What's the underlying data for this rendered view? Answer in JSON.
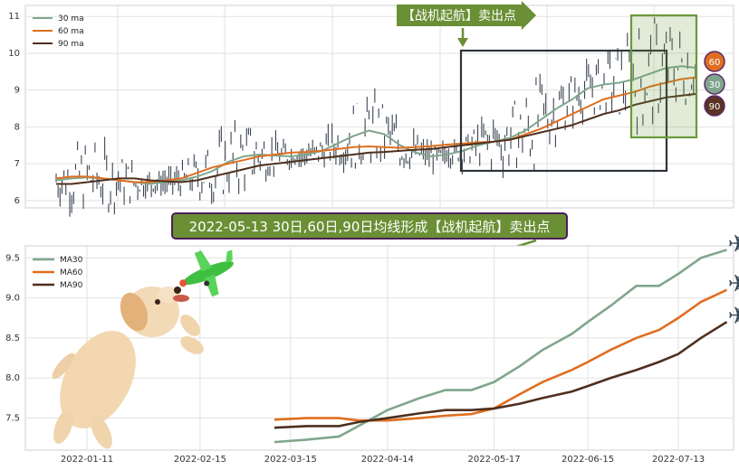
{
  "colors": {
    "ma30": "#7fa68c",
    "ma60": "#e06e1f",
    "ma90": "#4e2f1e",
    "candle": "#3b4452",
    "box": "#2e343c",
    "box_green": "#6a9a3c",
    "arrow_green": "#5e8a32",
    "banner_border": "#4b1f5a",
    "badge_60": "#e06e1f",
    "badge_30": "#7fa68c",
    "badge_90": "#5a3322"
  },
  "top": {
    "annotation": "【战机起航】卖出点",
    "badges": [
      "60",
      "30",
      "90"
    ]
  },
  "banner": "2022-05-13 30日,60日,90日均线形成【战机起航】卖出点",
  "icons": {
    "dog": "dog-illustration",
    "plane": "airplane-icon"
  },
  "chart_data": [
    {
      "type": "line",
      "y_ticks": [
        6,
        7,
        8,
        9,
        10,
        11
      ],
      "ylim": [
        5.8,
        11.3
      ],
      "grid": true,
      "legend_position": "top-left",
      "series": [
        {
          "name": "30 ma",
          "start_day": 60,
          "values": [
            6.55,
            6.6,
            6.63,
            6.6,
            6.55,
            6.5,
            6.45,
            6.5,
            6.55,
            6.65,
            6.8,
            7.05,
            7.2,
            7.25,
            7.22,
            7.2,
            7.25,
            7.35,
            7.55,
            7.75,
            7.9,
            7.8,
            7.5,
            7.3,
            7.2,
            7.25,
            7.35,
            7.5,
            7.6,
            7.7,
            7.9,
            8.2,
            8.5,
            8.75,
            9.05,
            9.15,
            9.2,
            9.3,
            9.45,
            9.6,
            9.65,
            9.6
          ]
        },
        {
          "name": "60 ma",
          "start_day": 60,
          "values": [
            6.6,
            6.65,
            6.65,
            6.6,
            6.55,
            6.5,
            6.5,
            6.55,
            6.6,
            6.75,
            6.9,
            7.0,
            7.1,
            7.2,
            7.25,
            7.3,
            7.32,
            7.35,
            7.4,
            7.45,
            7.47,
            7.45,
            7.43,
            7.45,
            7.48,
            7.52,
            7.55,
            7.58,
            7.6,
            7.65,
            7.8,
            7.95,
            8.15,
            8.35,
            8.55,
            8.75,
            8.85,
            8.95,
            9.1,
            9.2,
            9.3,
            9.35
          ]
        },
        {
          "name": "90 ma",
          "start_day": 60,
          "values": [
            6.45,
            6.45,
            6.5,
            6.55,
            6.6,
            6.6,
            6.55,
            6.52,
            6.5,
            6.55,
            6.65,
            6.75,
            6.85,
            6.95,
            7.0,
            7.05,
            7.1,
            7.15,
            7.2,
            7.25,
            7.3,
            7.32,
            7.35,
            7.38,
            7.4,
            7.45,
            7.5,
            7.55,
            7.6,
            7.65,
            7.75,
            7.85,
            7.95,
            8.05,
            8.2,
            8.35,
            8.45,
            8.6,
            8.7,
            8.8,
            8.85,
            8.9
          ]
        }
      ],
      "ohlc_range": [
        5.9,
        10.5
      ]
    },
    {
      "type": "line",
      "categories": [
        "2022-01-11",
        "2022-02-15",
        "2022-03-15",
        "2022-04-14",
        "2022-05-17",
        "2022-06-15",
        "2022-07-13"
      ],
      "y_ticks": [
        "7.5",
        "8.0",
        "8.5",
        "9.0",
        "9.5"
      ],
      "ylim": [
        7.1,
        9.65
      ],
      "grid": true,
      "legend_position": "top-left",
      "series": [
        {
          "name": "MA30",
          "x": [
            "2022-03-10",
            "2022-03-20",
            "2022-03-30",
            "2022-04-05",
            "2022-04-14",
            "2022-04-24",
            "2022-05-02",
            "2022-05-10",
            "2022-05-17",
            "2022-05-25",
            "2022-06-01",
            "2022-06-10",
            "2022-06-15",
            "2022-06-22",
            "2022-06-30",
            "2022-07-07",
            "2022-07-13",
            "2022-07-20",
            "2022-07-28"
          ],
          "values": [
            7.2,
            7.23,
            7.27,
            7.4,
            7.6,
            7.75,
            7.85,
            7.85,
            7.95,
            8.15,
            8.35,
            8.55,
            8.7,
            8.9,
            9.15,
            9.15,
            9.3,
            9.5,
            9.6
          ]
        },
        {
          "name": "MA60",
          "x": [
            "2022-03-10",
            "2022-03-20",
            "2022-03-30",
            "2022-04-05",
            "2022-04-14",
            "2022-04-24",
            "2022-05-02",
            "2022-05-10",
            "2022-05-17",
            "2022-05-25",
            "2022-06-01",
            "2022-06-10",
            "2022-06-15",
            "2022-06-22",
            "2022-06-30",
            "2022-07-07",
            "2022-07-13",
            "2022-07-20",
            "2022-07-28"
          ],
          "values": [
            7.48,
            7.5,
            7.5,
            7.47,
            7.47,
            7.5,
            7.53,
            7.55,
            7.62,
            7.8,
            7.95,
            8.1,
            8.2,
            8.35,
            8.5,
            8.6,
            8.75,
            8.95,
            9.1
          ]
        },
        {
          "name": "MA90",
          "x": [
            "2022-03-10",
            "2022-03-20",
            "2022-03-30",
            "2022-04-05",
            "2022-04-14",
            "2022-04-24",
            "2022-05-02",
            "2022-05-10",
            "2022-05-17",
            "2022-05-25",
            "2022-06-01",
            "2022-06-10",
            "2022-06-15",
            "2022-06-22",
            "2022-06-30",
            "2022-07-07",
            "2022-07-13",
            "2022-07-20",
            "2022-07-28"
          ],
          "values": [
            7.38,
            7.4,
            7.4,
            7.45,
            7.5,
            7.56,
            7.6,
            7.6,
            7.62,
            7.68,
            7.75,
            7.83,
            7.9,
            8.0,
            8.1,
            8.2,
            8.3,
            8.5,
            8.7
          ]
        }
      ]
    }
  ]
}
